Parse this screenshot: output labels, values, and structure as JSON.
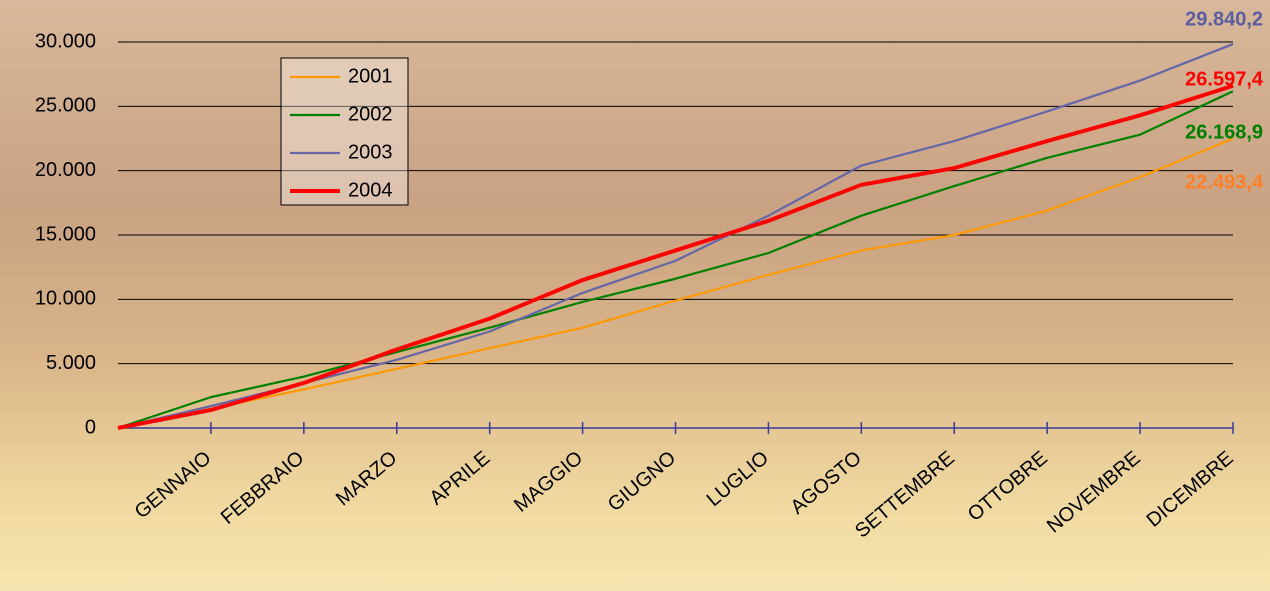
{
  "chart_data": {
    "type": "line",
    "categories": [
      null,
      "GENNAIO",
      "FEBBRAIO",
      "MARZO",
      "APRILE",
      "MAGGIO",
      "GIUGNO",
      "LUGLIO",
      "AGOSTO",
      "SETTEMBRE",
      "OTTOBRE",
      "NOVEMBRE",
      "DICEMBRE"
    ],
    "series": [
      {
        "name": "2001",
        "color": "#ff9900",
        "label_color": "#ff7f27",
        "values": [
          0,
          1500,
          3000,
          4600,
          6200,
          7800,
          9900,
          11900,
          13800,
          15000,
          16900,
          19500,
          22493.4
        ],
        "value_labels": [
          null,
          null,
          null,
          null,
          null,
          null,
          null,
          null,
          null,
          null,
          null,
          null,
          "22.493,4"
        ]
      },
      {
        "name": "2002",
        "color": "#008000",
        "label_color": "#008000",
        "values": [
          0,
          2400,
          4000,
          5900,
          7800,
          9800,
          11600,
          13600,
          16500,
          18800,
          21000,
          22800,
          26168.9
        ],
        "value_labels": [
          null,
          null,
          null,
          null,
          null,
          null,
          null,
          null,
          null,
          null,
          null,
          null,
          "26.168,9"
        ]
      },
      {
        "name": "2003",
        "color": "#6666a8",
        "label_color": "#5c5ca0",
        "values": [
          0,
          1700,
          3500,
          5300,
          7500,
          10500,
          13000,
          16500,
          20400,
          22300,
          24600,
          27000,
          29840.2
        ],
        "value_labels": [
          null,
          null,
          null,
          null,
          null,
          null,
          null,
          null,
          null,
          null,
          null,
          null,
          "29.840,2"
        ]
      },
      {
        "name": "2004",
        "color": "#ff0000",
        "label_color": "#ff0000",
        "values": [
          0,
          1400,
          3500,
          6100,
          8500,
          11500,
          13800,
          16100,
          18900,
          20200,
          22300,
          24300,
          26597.4
        ],
        "value_labels": [
          null,
          null,
          null,
          null,
          null,
          null,
          null,
          null,
          null,
          null,
          null,
          null,
          "26.597,4"
        ]
      }
    ],
    "ylim": [
      0,
      30000
    ],
    "yticks": [
      0,
      {
        "value": 5000,
        "label": "5.000"
      },
      {
        "value": 10000,
        "label": "10.000"
      },
      {
        "value": 15000,
        "label": "15.000"
      },
      {
        "value": 20000,
        "label": "20.000"
      },
      {
        "value": 25000,
        "label": "25.000"
      },
      {
        "value": 30000,
        "label": "30.000"
      }
    ],
    "grid": true,
    "legend": "upper-left"
  }
}
